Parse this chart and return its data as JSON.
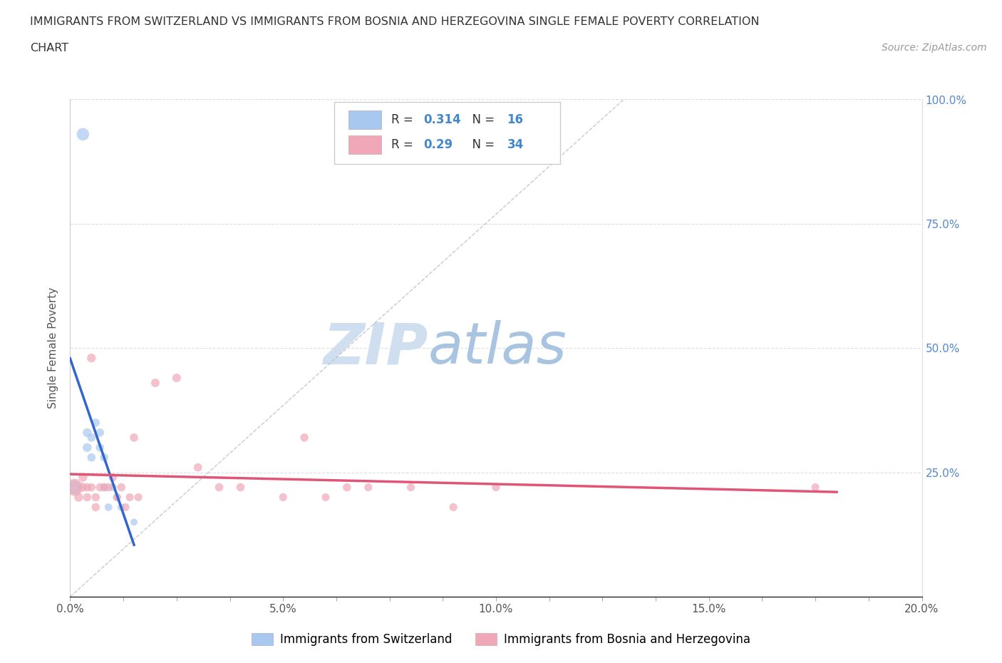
{
  "title_line1": "IMMIGRANTS FROM SWITZERLAND VS IMMIGRANTS FROM BOSNIA AND HERZEGOVINA SINGLE FEMALE POVERTY CORRELATION",
  "title_line2": "CHART",
  "source": "Source: ZipAtlas.com",
  "ylabel": "Single Female Poverty",
  "xlim": [
    0.0,
    0.2
  ],
  "ylim": [
    0.0,
    1.0
  ],
  "R_switzerland": 0.314,
  "N_switzerland": 16,
  "R_bosnia": 0.29,
  "N_bosnia": 34,
  "color_switzerland": "#a8c8f0",
  "color_bosnia": "#f0a8b8",
  "line_color_switzerland": "#3366cc",
  "line_color_bosnia": "#e05575",
  "watermark_zip": "ZIP",
  "watermark_atlas": "atlas",
  "watermark_color_zip": "#d0dff0",
  "watermark_color_atlas": "#a8c4e0",
  "background_color": "#ffffff",
  "grid_color": "#dddddd",
  "legend_color_r": "#333333",
  "legend_color_num": "#4488cc",
  "right_tick_color": "#5588cc",
  "scatter_switzerland_x": [
    0.001,
    0.003,
    0.004,
    0.004,
    0.005,
    0.005,
    0.006,
    0.007,
    0.007,
    0.008,
    0.008,
    0.009,
    0.01,
    0.011,
    0.012,
    0.015
  ],
  "scatter_switzerland_y": [
    0.22,
    0.93,
    0.3,
    0.33,
    0.28,
    0.32,
    0.35,
    0.3,
    0.33,
    0.28,
    0.22,
    0.18,
    0.22,
    0.2,
    0.18,
    0.15
  ],
  "scatter_switzerland_size": [
    200,
    160,
    80,
    80,
    70,
    70,
    70,
    70,
    70,
    70,
    60,
    60,
    60,
    60,
    55,
    50
  ],
  "scatter_bosnia_x": [
    0.001,
    0.002,
    0.003,
    0.003,
    0.004,
    0.004,
    0.005,
    0.005,
    0.006,
    0.006,
    0.007,
    0.008,
    0.009,
    0.01,
    0.011,
    0.012,
    0.013,
    0.014,
    0.015,
    0.016,
    0.02,
    0.025,
    0.03,
    0.035,
    0.04,
    0.05,
    0.055,
    0.06,
    0.065,
    0.07,
    0.08,
    0.09,
    0.1,
    0.175
  ],
  "scatter_bosnia_y": [
    0.22,
    0.2,
    0.22,
    0.24,
    0.2,
    0.22,
    0.48,
    0.22,
    0.2,
    0.18,
    0.22,
    0.22,
    0.22,
    0.24,
    0.2,
    0.22,
    0.18,
    0.2,
    0.32,
    0.2,
    0.43,
    0.44,
    0.26,
    0.22,
    0.22,
    0.2,
    0.32,
    0.2,
    0.22,
    0.22,
    0.22,
    0.18,
    0.22,
    0.22
  ],
  "scatter_bosnia_size": [
    300,
    80,
    80,
    80,
    70,
    70,
    80,
    70,
    70,
    70,
    70,
    70,
    70,
    70,
    65,
    70,
    65,
    65,
    70,
    65,
    75,
    75,
    70,
    70,
    70,
    65,
    70,
    65,
    70,
    65,
    65,
    65,
    65,
    65
  ],
  "sw_line_x": [
    0.0,
    0.015
  ],
  "ba_line_x": [
    0.0,
    0.18
  ]
}
